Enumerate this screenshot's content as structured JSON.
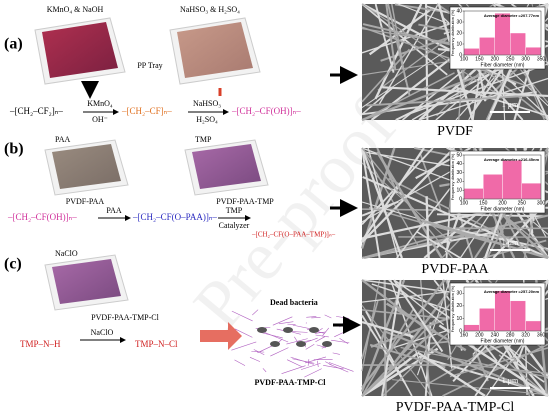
{
  "panels": [
    {
      "label": "(a)",
      "reagents": [
        "KMnO₄ & NaOH",
        "NaHSO₃ & H₂SO₄"
      ],
      "tray": "PP Tray",
      "steps": [
        {
          "top": "KMnO₄",
          "bottom": "OH⁻"
        },
        {
          "top": "NaHSO₃",
          "bottom": "H₂SO₄"
        }
      ],
      "formulas": [
        "–[CH₂–CF₂]ₙ–",
        "–[CH₂–CF]ₙ–",
        "–[CH₂–CF(OH)]ₙ–"
      ]
    },
    {
      "label": "(b)",
      "reagents": [
        "PAA",
        "TMP"
      ],
      "products": [
        "PVDF-PAA",
        "PVDF-PAA-TMP"
      ],
      "steps": [
        {
          "top": "PAA"
        },
        {
          "top": "TMP",
          "bottom": "Catalyzer"
        }
      ],
      "formulas": [
        "–[CH₂–CF(OH)]ₙ–",
        "–[CH₂–CF(O–PAA)]ₙ–",
        "–[CH₂–CF(O–PAA–TMP)]ₙ–"
      ]
    },
    {
      "label": "(c)",
      "reagents": [
        "NaClO"
      ],
      "products": [
        "PVDF-PAA-TMP-Cl"
      ],
      "steps": [
        {
          "top": "NaClO"
        }
      ],
      "formulas": [
        "TMP–N–H",
        "TMP–N–Cl"
      ],
      "annotation": "Dead bacteria",
      "mesh_label": "PVDF-PAA-TMP-Cl"
    }
  ],
  "sem": [
    {
      "caption": "PVDF",
      "scale": "1 μm",
      "hist": {
        "title": "Average diameter =207.77nm",
        "xlabel": "Fiber diameter (nm)",
        "ylabel": "Frequency distribution (%)",
        "bins": [
          100,
          150,
          200,
          250,
          300,
          350
        ],
        "values": [
          6,
          16,
          38,
          20,
          7
        ],
        "xlim": [
          100,
          350
        ],
        "ylim": [
          0,
          40
        ],
        "xticks": [
          100,
          150,
          200,
          250,
          300,
          350
        ],
        "yticks": [
          0,
          10,
          20,
          30,
          40
        ]
      }
    },
    {
      "caption": "PVDF-PAA",
      "scale": "1 μm",
      "hist": {
        "title": "Average diameter =216.45nm",
        "xlabel": "Fiber diameter (nm)",
        "ylabel": "Frequency distribution (%)",
        "bins": [
          100,
          150,
          200,
          250,
          300
        ],
        "values": [
          12,
          28,
          44,
          18
        ],
        "xlim": [
          100,
          300
        ],
        "ylim": [
          0,
          50
        ],
        "xticks": [
          100,
          150,
          200,
          250,
          300
        ],
        "yticks": [
          0,
          10,
          20,
          30,
          40,
          50
        ]
      }
    },
    {
      "caption": "PVDF-PAA-TMP-Cl",
      "scale": "1 μm",
      "hist": {
        "title": "Average diameter =257.20nm",
        "xlabel": "Fiber diameter (nm)",
        "ylabel": "Frequency distribution (%)",
        "bins": [
          160,
          200,
          240,
          280,
          320,
          360
        ],
        "values": [
          5,
          18,
          32,
          24,
          8
        ],
        "xlim": [
          160,
          360
        ],
        "ylim": [
          0,
          35
        ],
        "xticks": [
          160,
          200,
          240,
          280,
          320,
          360
        ],
        "yticks": [
          0,
          10,
          20,
          30
        ]
      }
    }
  ],
  "watermark": "Pre-proof"
}
